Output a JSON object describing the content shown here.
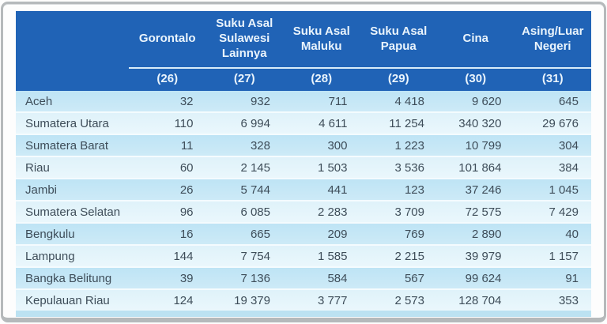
{
  "table": {
    "corner_label": "",
    "columns": [
      {
        "label": "Gorontalo",
        "code": "(26)"
      },
      {
        "label": "Suku Asal Sulawesi Lainnya",
        "code": "(27)"
      },
      {
        "label": "Suku Asal Maluku",
        "code": "(28)"
      },
      {
        "label": "Suku Asal Papua",
        "code": "(29)"
      },
      {
        "label": "Cina",
        "code": "(30)"
      },
      {
        "label": "Asing/Luar Negeri",
        "code": "(31)"
      }
    ],
    "rows": [
      {
        "region": "Aceh",
        "values": [
          "32",
          "932",
          "711",
          "4 418",
          "9 620",
          "645"
        ]
      },
      {
        "region": "Sumatera Utara",
        "values": [
          "110",
          "6 994",
          "4 611",
          "11 254",
          "340 320",
          "29 676"
        ]
      },
      {
        "region": "Sumatera Barat",
        "values": [
          "11",
          "328",
          "300",
          "1 223",
          "10 799",
          "304"
        ]
      },
      {
        "region": "Riau",
        "values": [
          "60",
          "2 145",
          "1 503",
          "3 536",
          "101 864",
          "384"
        ]
      },
      {
        "region": "Jambi",
        "values": [
          "26",
          "5 744",
          "441",
          "123",
          "37 246",
          "1 045"
        ]
      },
      {
        "region": "Sumatera Selatan",
        "values": [
          "96",
          "6 085",
          "2 283",
          "3 709",
          "72 575",
          "7 429"
        ]
      },
      {
        "region": "Bengkulu",
        "values": [
          "16",
          "665",
          "209",
          "769",
          "2 890",
          "40"
        ]
      },
      {
        "region": "Lampung",
        "values": [
          "144",
          "7 754",
          "1 585",
          "2 215",
          "39 979",
          "1 157"
        ]
      },
      {
        "region": "Bangka Belitung",
        "values": [
          "39",
          "7 136",
          "584",
          "567",
          "99 624",
          "91"
        ]
      },
      {
        "region": "Kepulauan Riau",
        "values": [
          "124",
          "19 379",
          "3 777",
          "2 573",
          "128 704",
          "353"
        ]
      }
    ]
  },
  "colors": {
    "header_bg": "#2063B6",
    "header_text": "#EAF4FC",
    "cell_text": "#3E4D59",
    "frame_border": "#B5B9BB",
    "footer_strip": "#BCE2F2",
    "row_odd_top": "#BEE4F5",
    "row_odd_bot": "#CDEAF7",
    "row_even_top": "#DFF2FA",
    "row_even_bot": "#EAF7FC",
    "header_line": "#D9ECF9"
  }
}
